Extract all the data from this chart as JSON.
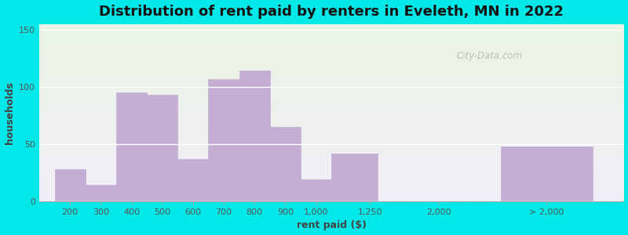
{
  "title": "Distribution of rent paid by renters in Eveleth, MN in 2022",
  "xlabel": "rent paid ($)",
  "ylabel": "households",
  "bar_color": "#c4aed4",
  "background_outer": "#00e8e8",
  "yticks": [
    0,
    50,
    100,
    150
  ],
  "ylim": [
    0,
    155
  ],
  "categories": [
    "200",
    "300",
    "400",
    "500",
    "600",
    "700",
    "800",
    "900",
    "1,000",
    "1,250",
    "2,000",
    "> 2,000"
  ],
  "values": [
    28,
    14,
    95,
    93,
    37,
    107,
    114,
    65,
    19,
    42,
    0,
    48
  ],
  "watermark": "City-Data.com",
  "title_fontsize": 13,
  "axis_label_fontsize": 9,
  "tick_fontsize": 8
}
